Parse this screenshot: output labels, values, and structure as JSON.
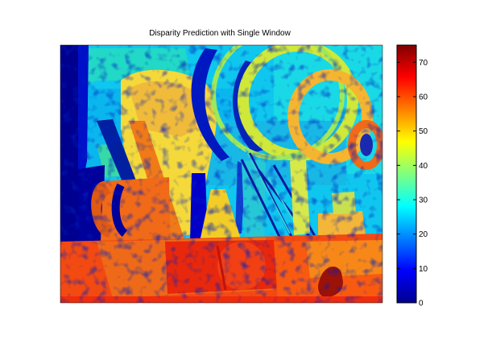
{
  "chart_data": {
    "type": "heatmap",
    "title": "Disparity Prediction with Single Window",
    "xlabel": "",
    "ylabel": "",
    "colormap": "jet",
    "colorbar": {
      "range": [
        0,
        75
      ],
      "ticks": [
        0,
        10,
        20,
        30,
        40,
        50,
        60,
        70
      ],
      "tick_labels": [
        "0",
        "10",
        "20",
        "30",
        "40",
        "50",
        "60",
        "70"
      ]
    },
    "axes_ticks_visible": false,
    "grid": false
  }
}
